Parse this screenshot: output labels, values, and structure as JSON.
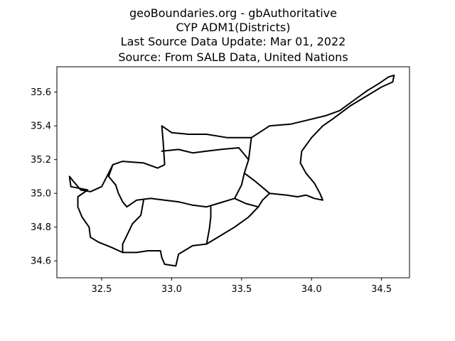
{
  "title_lines": [
    "geoBoundaries.org - gbAuthoritative",
    "CYP ADM1(Districts)",
    "Last Source Data Update: Mar 01, 2022",
    "Source: From SALB Data, United Nations"
  ],
  "chart_data": {
    "type": "map",
    "xlim": [
      32.18,
      34.7
    ],
    "ylim": [
      34.5,
      35.75
    ],
    "x_ticks": [
      {
        "value": 32.5,
        "label": "32.5"
      },
      {
        "value": 33.0,
        "label": "33.0"
      },
      {
        "value": 33.5,
        "label": "33.5"
      },
      {
        "value": 34.0,
        "label": "34.0"
      },
      {
        "value": 34.5,
        "label": "34.5"
      }
    ],
    "y_ticks": [
      {
        "value": 34.6,
        "label": "34.6"
      },
      {
        "value": 34.8,
        "label": "34.8"
      },
      {
        "value": 35.0,
        "label": "35.0"
      },
      {
        "value": 35.2,
        "label": "35.2"
      },
      {
        "value": 35.4,
        "label": "35.4"
      },
      {
        "value": 35.6,
        "label": "35.6"
      }
    ],
    "line_color": "#000000",
    "grid": false,
    "coastline": [
      [
        32.4,
        35.02
      ],
      [
        32.28,
        35.04
      ],
      [
        32.27,
        35.1
      ],
      [
        32.3,
        35.07
      ],
      [
        32.35,
        35.02
      ],
      [
        32.42,
        35.01
      ],
      [
        32.5,
        35.04
      ],
      [
        32.55,
        35.12
      ],
      [
        32.58,
        35.17
      ],
      [
        32.65,
        35.19
      ],
      [
        32.8,
        35.18
      ],
      [
        32.9,
        35.15
      ],
      [
        32.95,
        35.17
      ],
      [
        32.94,
        35.3
      ],
      [
        32.93,
        35.4
      ],
      [
        33.0,
        35.36
      ],
      [
        33.12,
        35.35
      ],
      [
        33.25,
        35.35
      ],
      [
        33.4,
        35.33
      ],
      [
        33.57,
        35.33
      ],
      [
        33.7,
        35.4
      ],
      [
        33.85,
        35.41
      ],
      [
        34.0,
        35.44
      ],
      [
        34.1,
        35.46
      ],
      [
        34.2,
        35.49
      ],
      [
        34.3,
        35.55
      ],
      [
        34.4,
        35.61
      ],
      [
        34.48,
        35.65
      ],
      [
        34.55,
        35.69
      ],
      [
        34.59,
        35.7
      ],
      [
        34.58,
        35.66
      ],
      [
        34.5,
        35.63
      ],
      [
        34.4,
        35.58
      ],
      [
        34.28,
        35.52
      ],
      [
        34.15,
        35.44
      ],
      [
        34.08,
        35.4
      ],
      [
        34.0,
        35.33
      ],
      [
        33.93,
        35.25
      ],
      [
        33.92,
        35.18
      ],
      [
        33.96,
        35.12
      ],
      [
        34.02,
        35.06
      ],
      [
        34.06,
        35.0
      ],
      [
        34.08,
        34.96
      ],
      [
        34.02,
        34.97
      ],
      [
        33.96,
        34.99
      ],
      [
        33.9,
        34.98
      ],
      [
        33.82,
        34.99
      ],
      [
        33.7,
        35.0
      ],
      [
        33.65,
        34.96
      ],
      [
        33.62,
        34.92
      ],
      [
        33.55,
        34.86
      ],
      [
        33.45,
        34.8
      ],
      [
        33.35,
        34.75
      ],
      [
        33.25,
        34.7
      ],
      [
        33.15,
        34.69
      ],
      [
        33.05,
        34.64
      ],
      [
        33.03,
        34.57
      ],
      [
        32.95,
        34.58
      ],
      [
        32.93,
        34.62
      ],
      [
        32.92,
        34.66
      ],
      [
        32.83,
        34.66
      ],
      [
        32.75,
        34.65
      ],
      [
        32.65,
        34.65
      ],
      [
        32.57,
        34.68
      ],
      [
        32.48,
        34.71
      ],
      [
        32.42,
        34.74
      ],
      [
        32.41,
        34.8
      ],
      [
        32.36,
        34.86
      ],
      [
        32.33,
        34.92
      ],
      [
        32.33,
        34.98
      ],
      [
        32.4,
        35.02
      ]
    ],
    "district_borders": [
      [
        [
          32.58,
          35.17
        ],
        [
          32.55,
          35.1
        ],
        [
          32.6,
          35.05
        ],
        [
          32.62,
          35.0
        ],
        [
          32.65,
          34.95
        ],
        [
          32.68,
          34.92
        ],
        [
          32.75,
          34.96
        ],
        [
          32.85,
          34.97
        ],
        [
          32.95,
          34.96
        ],
        [
          33.05,
          34.95
        ],
        [
          33.15,
          34.93
        ],
        [
          33.25,
          34.92
        ],
        [
          33.33,
          34.94
        ],
        [
          33.45,
          34.97
        ],
        [
          33.5,
          35.05
        ],
        [
          33.52,
          35.12
        ],
        [
          33.55,
          35.2
        ],
        [
          33.57,
          35.33
        ]
      ],
      [
        [
          32.93,
          35.25
        ],
        [
          33.05,
          35.26
        ],
        [
          33.15,
          35.24
        ],
        [
          33.25,
          35.25
        ],
        [
          33.35,
          35.26
        ],
        [
          33.48,
          35.27
        ],
        [
          33.55,
          35.2
        ]
      ],
      [
        [
          33.52,
          35.12
        ],
        [
          33.6,
          35.07
        ],
        [
          33.7,
          35.0
        ]
      ],
      [
        [
          32.8,
          34.96
        ],
        [
          32.78,
          34.87
        ],
        [
          32.72,
          34.82
        ],
        [
          32.68,
          34.75
        ],
        [
          32.65,
          34.7
        ],
        [
          32.65,
          34.65
        ]
      ],
      [
        [
          33.28,
          34.92
        ],
        [
          33.28,
          34.86
        ],
        [
          33.27,
          34.79
        ],
        [
          33.25,
          34.7
        ]
      ],
      [
        [
          33.45,
          34.97
        ],
        [
          33.53,
          34.94
        ],
        [
          33.62,
          34.92
        ]
      ]
    ]
  }
}
